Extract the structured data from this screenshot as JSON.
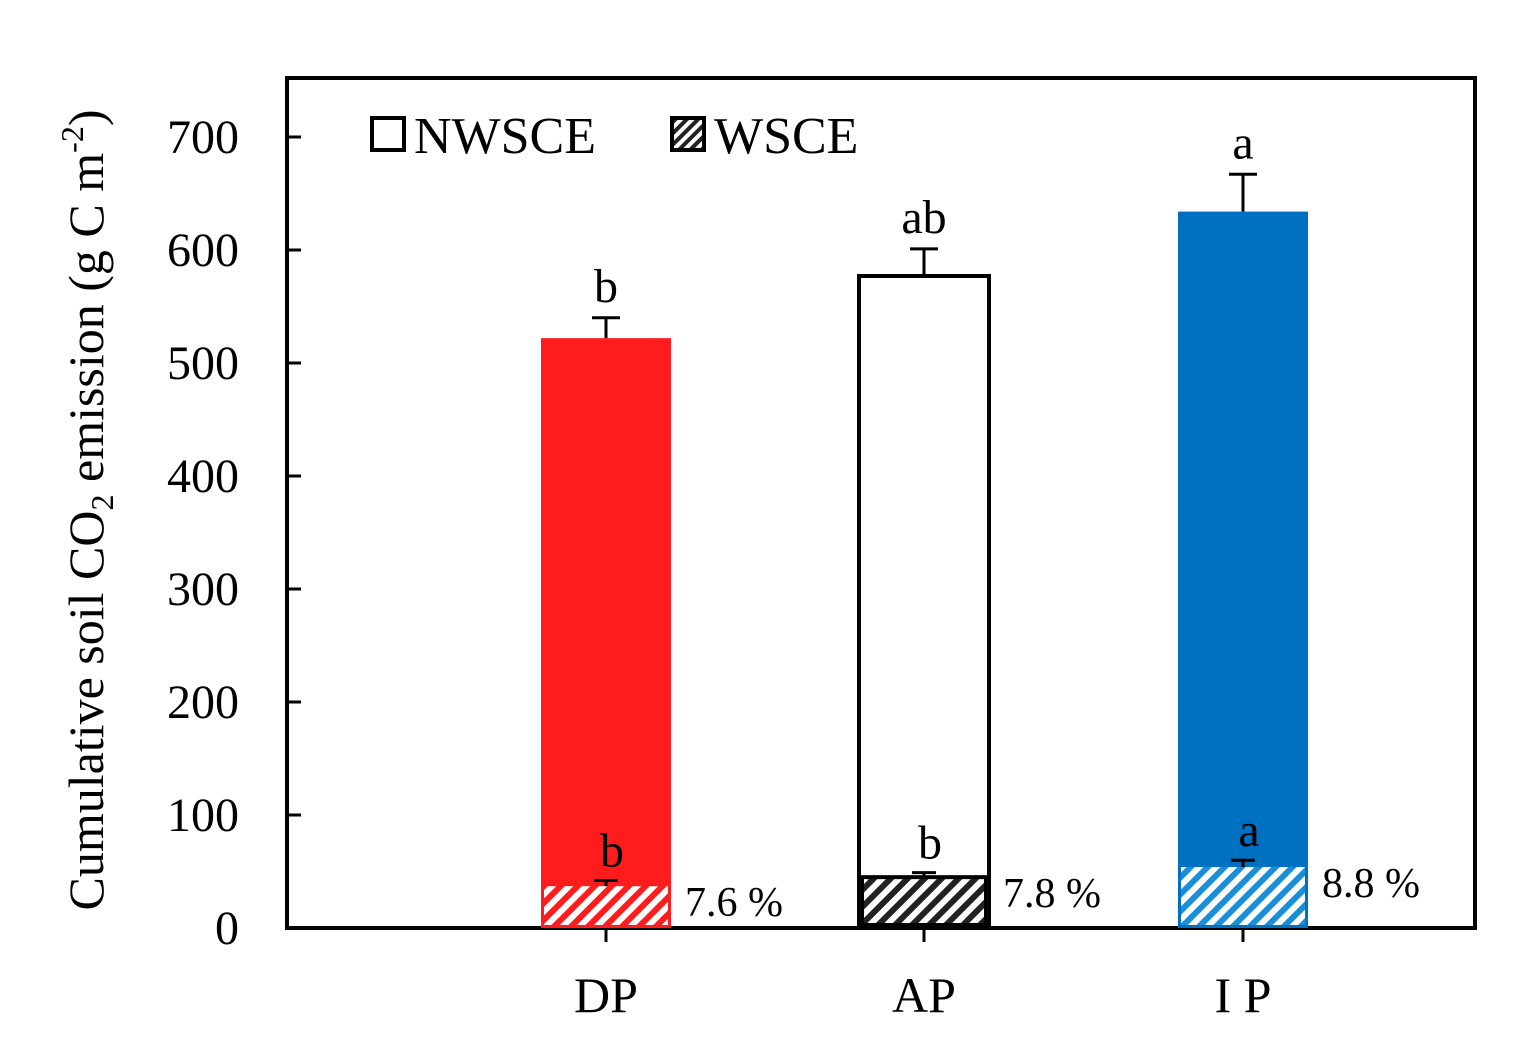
{
  "chart_data": {
    "type": "bar",
    "ylabel_parts": {
      "main": "Cumulative soil CO",
      "sub": "2",
      "after": " emission (g C m",
      "sup": "-2",
      "end": ")"
    },
    "ylim": [
      0,
      750
    ],
    "yticks": [
      "0",
      "100",
      "200",
      "300",
      "400",
      "500",
      "600",
      "700"
    ],
    "ytick_values": [
      0,
      100,
      200,
      300,
      400,
      500,
      600,
      700
    ],
    "categories": [
      "DP",
      "AP",
      "I P"
    ],
    "series": [
      {
        "name": "NWSCE",
        "values": [
          522,
          577,
          634
        ],
        "errors": [
          18,
          24,
          33
        ],
        "letters": [
          "b",
          "ab",
          "a"
        ]
      },
      {
        "name": "WSCE",
        "values": [
          37,
          45,
          54
        ],
        "errors": [
          5,
          4,
          6
        ],
        "letters": [
          "b",
          "b",
          "a"
        ],
        "percent_labels": [
          "7.6 %",
          "7.8 %",
          "8.8 %"
        ]
      }
    ],
    "legend": {
      "position": "top-left",
      "entries": [
        "NWSCE",
        "WSCE"
      ]
    },
    "grid": false,
    "colors": {
      "total": [
        "#ff1c1c",
        "#ffffff",
        "#0070c0"
      ],
      "hatch": [
        "#ff1c1c",
        "#222222",
        "#1a8fd8"
      ],
      "outline": "#000000"
    }
  }
}
